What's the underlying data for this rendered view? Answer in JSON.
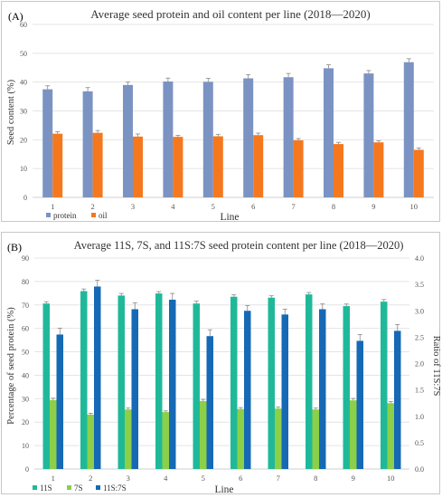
{
  "colors": {
    "protein": "#7b93c3",
    "oil": "#f5781e",
    "s11": "#1fb99a",
    "s7": "#8ccf48",
    "ratio": "#1569b5",
    "grid": "#e4e4e4",
    "axis_text": "#555555",
    "error_bar": "#888888"
  },
  "chart_data": [
    {
      "panel_label": "(A)",
      "type": "bar",
      "title": "Average seed protein and oil content per line (2018—2020)",
      "xlabel": "Line",
      "ylabel": "Seed content (%)",
      "categories": [
        "1",
        "2",
        "3",
        "4",
        "5",
        "6",
        "7",
        "8",
        "9",
        "10"
      ],
      "ylim": [
        0,
        60
      ],
      "yticks": [
        "0",
        "10",
        "20",
        "30",
        "40",
        "50",
        "60"
      ],
      "grid": true,
      "legend_position": "bottom-left",
      "series": [
        {
          "name": "protein",
          "values": [
            37.5,
            36.8,
            39.0,
            40.2,
            40.1,
            41.3,
            41.7,
            44.8,
            43.0,
            46.9
          ],
          "errors": [
            1.2,
            1.3,
            1.0,
            1.2,
            1.2,
            1.3,
            1.3,
            1.2,
            1.0,
            1.2
          ]
        },
        {
          "name": "oil",
          "values": [
            22.1,
            22.4,
            21.1,
            21.0,
            21.2,
            21.6,
            19.8,
            18.5,
            19.1,
            16.5
          ],
          "errors": [
            0.7,
            0.8,
            0.9,
            0.5,
            0.7,
            0.7,
            0.6,
            0.6,
            0.5,
            0.6
          ]
        }
      ]
    },
    {
      "panel_label": "(B)",
      "type": "bar",
      "title": "Average 11S, 7S, and 11S:7S seed protein content per line (2018—2020)",
      "xlabel": "Line",
      "ylabel": "Percentage of seed protein (%)",
      "y2label": "Ratio of 11S:7S",
      "categories": [
        "1",
        "2",
        "3",
        "4",
        "5",
        "6",
        "7",
        "8",
        "9",
        "10"
      ],
      "ylim": [
        0,
        90
      ],
      "yticks": [
        "0",
        "10",
        "20",
        "30",
        "40",
        "50",
        "60",
        "70",
        "80",
        "90"
      ],
      "y2lim": [
        0,
        4
      ],
      "y2ticks": [
        "0.0",
        "0.5",
        "1.0",
        "1.5",
        "2.0",
        "2.5",
        "3.0",
        "3.5",
        "4.0"
      ],
      "grid": true,
      "legend_position": "bottom-left",
      "series": [
        {
          "name": "11S",
          "axis": "left",
          "values": [
            70.6,
            75.9,
            74.0,
            74.9,
            70.6,
            73.5,
            73.1,
            74.5,
            69.5,
            71.4
          ],
          "errors": [
            0.8,
            0.9,
            0.9,
            0.8,
            1.0,
            0.8,
            0.8,
            0.8,
            0.9,
            0.9
          ]
        },
        {
          "name": "7S",
          "axis": "left",
          "values": [
            29.4,
            23.2,
            25.4,
            24.3,
            29.0,
            25.6,
            25.8,
            25.4,
            29.3,
            28.1
          ],
          "errors": [
            0.8,
            0.6,
            0.6,
            0.5,
            0.7,
            0.6,
            0.6,
            0.6,
            0.8,
            0.7
          ]
        },
        {
          "name": "11S:7S",
          "axis": "right",
          "values": [
            2.55,
            3.46,
            3.03,
            3.21,
            2.52,
            3.0,
            2.93,
            3.03,
            2.43,
            2.62
          ],
          "errors": [
            0.12,
            0.12,
            0.12,
            0.12,
            0.12,
            0.1,
            0.1,
            0.1,
            0.12,
            0.12
          ]
        }
      ]
    }
  ]
}
